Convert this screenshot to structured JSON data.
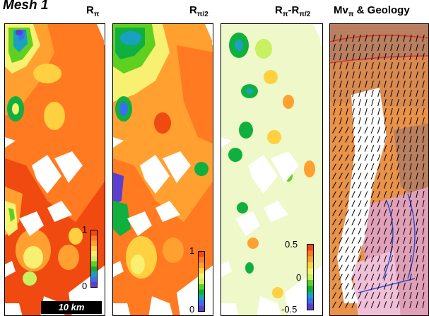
{
  "mesh_title": "Mesh 1",
  "panels": [
    {
      "title_main": "R",
      "title_sub": "π"
    },
    {
      "title_main": "R",
      "title_sub": "π/2"
    },
    {
      "title_main": "R",
      "title_sub": "π",
      "title_main2": "-R",
      "title_sub2": "π/2"
    },
    {
      "title_main": "Mv",
      "title_sub": "π",
      "title_tail": " & Geology"
    }
  ],
  "colorbars": [
    {
      "max_label": "1",
      "min_label": "0"
    },
    {
      "max_label": "1",
      "min_label": "0"
    },
    {
      "max_label": "0.5",
      "mid_label": "0",
      "min_label": "-0.5"
    }
  ],
  "scale_label": "10 km",
  "colors": {
    "scale": [
      "#5a3fd0",
      "#3a6ff0",
      "#1aa0c0",
      "#10b040",
      "#60d020",
      "#c8f060",
      "#f8f070",
      "#ffd040",
      "#ffa030",
      "#ff7a20",
      "#f04a10"
    ],
    "geo_orange": "#e8924a",
    "geo_brown": "#b88060",
    "geo_pink": "#e0a0b8",
    "geo_fault": "#3050d0"
  }
}
